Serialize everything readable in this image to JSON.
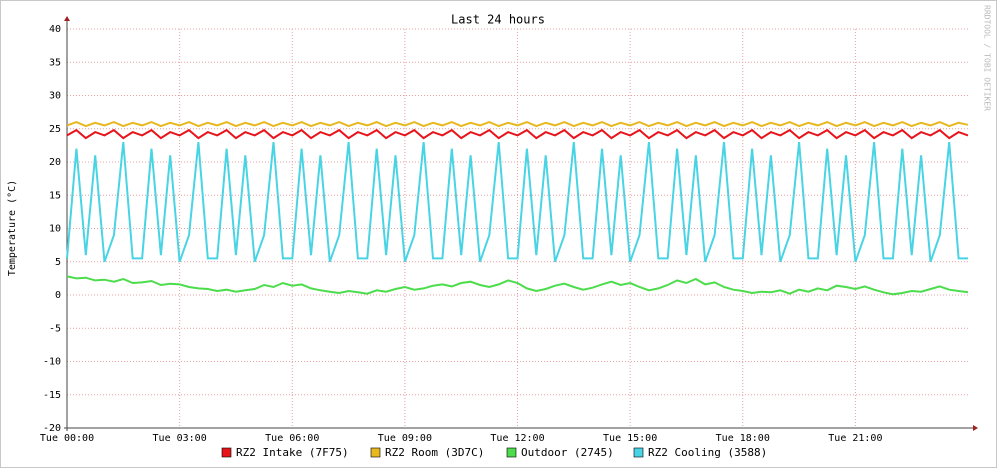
{
  "chart_data": {
    "type": "line",
    "title": "Last 24 hours",
    "y_label": "Temperature (°C)",
    "watermark": "RRDTOOL / TOBI OETIKER",
    "x": [
      0,
      0.25,
      0.5,
      0.75,
      1,
      1.25,
      1.5,
      1.75,
      2,
      2.25,
      2.5,
      2.75,
      3,
      3.25,
      3.5,
      3.75,
      4,
      4.25,
      4.5,
      4.75,
      5,
      5.25,
      5.5,
      5.75,
      6,
      6.25,
      6.5,
      6.75,
      7,
      7.25,
      7.5,
      7.75,
      8,
      8.25,
      8.5,
      8.75,
      9,
      9.25,
      9.5,
      9.75,
      10,
      10.25,
      10.5,
      10.75,
      11,
      11.25,
      11.5,
      11.75,
      12,
      12.25,
      12.5,
      12.75,
      13,
      13.25,
      13.5,
      13.75,
      14,
      14.25,
      14.5,
      14.75,
      15,
      15.25,
      15.5,
      15.75,
      16,
      16.25,
      16.5,
      16.75,
      17,
      17.25,
      17.5,
      17.75,
      18,
      18.25,
      18.5,
      18.75,
      19,
      19.25,
      19.5,
      19.75,
      20,
      20.25,
      20.5,
      20.75,
      21,
      21.25,
      21.5,
      21.75,
      22,
      22.25,
      22.5,
      22.75,
      23,
      23.25,
      23.5,
      23.75,
      24
    ],
    "xlim": [
      0,
      24
    ],
    "xticks": [
      {
        "value": 0,
        "label": "Tue 00:00"
      },
      {
        "value": 3,
        "label": "Tue 03:00"
      },
      {
        "value": 6,
        "label": "Tue 06:00"
      },
      {
        "value": 9,
        "label": "Tue 09:00"
      },
      {
        "value": 12,
        "label": "Tue 12:00"
      },
      {
        "value": 15,
        "label": "Tue 15:00"
      },
      {
        "value": 18,
        "label": "Tue 18:00"
      },
      {
        "value": 21,
        "label": "Tue 21:00"
      }
    ],
    "ylim": [
      -20,
      40
    ],
    "yticks": [
      -20,
      -15,
      -10,
      -5,
      0,
      5,
      10,
      15,
      20,
      25,
      30,
      35,
      40
    ],
    "grid": true,
    "series": [
      {
        "name": "RZ2 Intake (7F75)",
        "color": "#e8141c",
        "values": [
          24,
          24.8,
          23.6,
          24.5,
          24,
          24.8,
          23.6,
          24.5,
          24,
          24.8,
          23.6,
          24.5,
          24,
          24.8,
          23.6,
          24.5,
          24,
          24.8,
          23.6,
          24.5,
          24,
          24.8,
          23.6,
          24.5,
          24,
          24.8,
          23.6,
          24.5,
          24,
          24.8,
          23.6,
          24.5,
          24,
          24.8,
          23.6,
          24.5,
          24,
          24.8,
          23.6,
          24.5,
          24,
          24.8,
          23.6,
          24.5,
          24,
          24.8,
          23.6,
          24.5,
          24,
          24.8,
          23.6,
          24.5,
          24,
          24.8,
          23.6,
          24.5,
          24,
          24.8,
          23.6,
          24.5,
          24,
          24.8,
          23.6,
          24.5,
          24,
          24.8,
          23.6,
          24.5,
          24,
          24.8,
          23.6,
          24.5,
          24,
          24.8,
          23.6,
          24.5,
          24,
          24.8,
          23.6,
          24.5,
          24,
          24.8,
          23.6,
          24.5,
          24,
          24.8,
          23.6,
          24.5,
          24,
          24.8,
          23.6,
          24.5,
          24,
          24.8,
          23.6,
          24.5,
          24
        ]
      },
      {
        "name": "RZ2 Room (3D7C)",
        "color": "#e8b820",
        "values": [
          25.5,
          26,
          25.4,
          25.9,
          25.5,
          26,
          25.4,
          25.9,
          25.5,
          26,
          25.4,
          25.9,
          25.5,
          26,
          25.4,
          25.9,
          25.5,
          26,
          25.4,
          25.9,
          25.5,
          26,
          25.4,
          25.9,
          25.5,
          26,
          25.4,
          25.9,
          25.5,
          26,
          25.4,
          25.9,
          25.5,
          26,
          25.4,
          25.9,
          25.5,
          26,
          25.4,
          25.9,
          25.5,
          26,
          25.4,
          25.9,
          25.5,
          26,
          25.4,
          25.9,
          25.5,
          26,
          25.4,
          25.9,
          25.5,
          26,
          25.4,
          25.9,
          25.5,
          26,
          25.4,
          25.9,
          25.5,
          26,
          25.4,
          25.9,
          25.5,
          26,
          25.4,
          25.9,
          25.5,
          26,
          25.4,
          25.9,
          25.5,
          26,
          25.4,
          25.9,
          25.5,
          26,
          25.4,
          25.9,
          25.5,
          26,
          25.4,
          25.9,
          25.5,
          26,
          25.4,
          25.9,
          25.5,
          26,
          25.4,
          25.9,
          25.5,
          26,
          25.4,
          25.9,
          25.6
        ]
      },
      {
        "name": "Outdoor (2745)",
        "color": "#4cdc4c",
        "values": [
          2.8,
          2.5,
          2.6,
          2.2,
          2.3,
          2.0,
          2.4,
          1.8,
          1.9,
          2.1,
          1.5,
          1.7,
          1.6,
          1.2,
          1.0,
          0.9,
          0.6,
          0.8,
          0.5,
          0.7,
          0.9,
          1.5,
          1.2,
          1.8,
          1.4,
          1.6,
          1.0,
          0.7,
          0.5,
          0.3,
          0.6,
          0.4,
          0.2,
          0.7,
          0.5,
          0.9,
          1.2,
          0.8,
          1.0,
          1.4,
          1.6,
          1.3,
          1.8,
          2.0,
          1.5,
          1.2,
          1.6,
          2.2,
          1.8,
          1.0,
          0.6,
          0.9,
          1.4,
          1.7,
          1.2,
          0.8,
          1.1,
          1.6,
          2.0,
          1.5,
          1.8,
          1.2,
          0.7,
          1.0,
          1.5,
          2.2,
          1.8,
          2.4,
          1.6,
          1.9,
          1.2,
          0.8,
          0.6,
          0.3,
          0.5,
          0.4,
          0.7,
          0.2,
          0.8,
          0.5,
          1.0,
          0.7,
          1.4,
          1.2,
          0.9,
          1.3,
          0.8,
          0.4,
          0.1,
          0.3,
          0.6,
          0.5,
          0.9,
          1.3,
          0.8,
          0.6,
          0.4
        ]
      },
      {
        "name": "RZ2 Cooling (3588)",
        "color": "#48d4e4",
        "values": [
          5.5,
          22,
          6,
          21,
          5,
          9,
          23,
          5.5,
          5.5,
          22,
          6,
          21,
          5,
          9,
          23,
          5.5,
          5.5,
          22,
          6,
          21,
          5,
          9,
          23,
          5.5,
          5.5,
          22,
          6,
          21,
          5,
          9,
          23,
          5.5,
          5.5,
          22,
          6,
          21,
          5,
          9,
          23,
          5.5,
          5.5,
          22,
          6,
          21,
          5,
          9,
          23,
          5.5,
          5.5,
          22,
          6,
          21,
          5,
          9,
          23,
          5.5,
          5.5,
          22,
          6,
          21,
          5,
          9,
          23,
          5.5,
          5.5,
          22,
          6,
          21,
          5,
          9,
          23,
          5.5,
          5.5,
          22,
          6,
          21,
          5,
          9,
          23,
          5.5,
          5.5,
          22,
          6,
          21,
          5,
          9,
          23,
          5.5,
          5.5,
          22,
          6,
          21,
          5,
          9,
          23,
          5.5,
          5.5
        ]
      }
    ]
  }
}
